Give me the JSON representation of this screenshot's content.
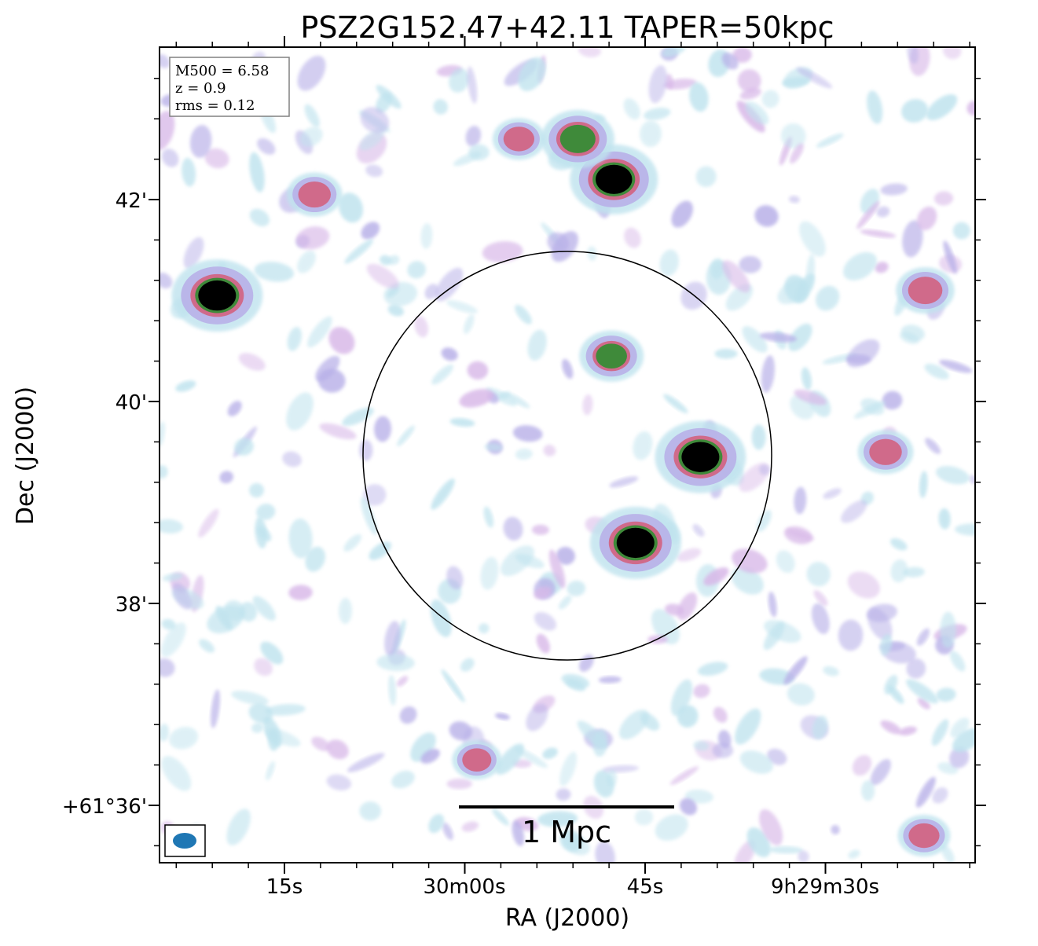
{
  "chart_data": {
    "type": "heatmap",
    "title": "PSZ2G152.47+42.11 TAPER=50kpc",
    "xlabel": "RA (J2000)",
    "ylabel": "Dec (J2000)",
    "x_ticks": [
      {
        "label": "15s",
        "value_sec_of_day": 33915
      },
      {
        "label": "30m00s",
        "value_sec_of_day": 33900
      },
      {
        "label": "45s",
        "value_sec_of_day": 33885
      },
      {
        "label": "9h29m30s",
        "value_sec_of_day": 33870
      }
    ],
    "y_ticks": [
      {
        "label": "42'",
        "value_arcmin": 42
      },
      {
        "label": "40'",
        "value_arcmin": 40
      },
      {
        "label": "38'",
        "value_arcmin": 38
      },
      {
        "label": "+61°36'",
        "value_arcmin": 36
      }
    ],
    "info_box": {
      "line1": "M500 = 6.58",
      "line2": "z = 0.9",
      "line3": "rms = 0.12"
    },
    "scale_bar": {
      "label": "1 Mpc"
    },
    "colormap": "cubehelix-like (white → light blue → lavender → pink/red → green → black)",
    "colors": {
      "low": "#bfe3ee",
      "mid": "#b8b0e8",
      "high": "#d06a8a",
      "peak": "#3f8a3a",
      "core": "#000000",
      "beam": "#1f77b4"
    },
    "sources": [
      {
        "ra_sec_of_day": 33920.6,
        "dec_arcmin": 41.05,
        "peak": 1.0
      },
      {
        "ra_sec_of_day": 33887.6,
        "dec_arcmin": 42.2,
        "peak": 0.95
      },
      {
        "ra_sec_of_day": 33890.6,
        "dec_arcmin": 42.6,
        "peak": 0.7
      },
      {
        "ra_sec_of_day": 33880.4,
        "dec_arcmin": 39.45,
        "peak": 1.0
      },
      {
        "ra_sec_of_day": 33885.8,
        "dec_arcmin": 38.6,
        "peak": 1.0
      },
      {
        "ra_sec_of_day": 33887.8,
        "dec_arcmin": 40.45,
        "peak": 0.55
      },
      {
        "ra_sec_of_day": 33861.7,
        "dec_arcmin": 41.1,
        "peak": 0.45
      },
      {
        "ra_sec_of_day": 33865.0,
        "dec_arcmin": 39.5,
        "peak": 0.4
      },
      {
        "ra_sec_of_day": 33912.5,
        "dec_arcmin": 42.05,
        "peak": 0.4
      },
      {
        "ra_sec_of_day": 33895.5,
        "dec_arcmin": 42.6,
        "peak": 0.35
      },
      {
        "ra_sec_of_day": 33899.0,
        "dec_arcmin": 36.45,
        "peak": 0.3
      },
      {
        "ra_sec_of_day": 33861.8,
        "dec_arcmin": 35.7,
        "peak": 0.35
      }
    ]
  }
}
